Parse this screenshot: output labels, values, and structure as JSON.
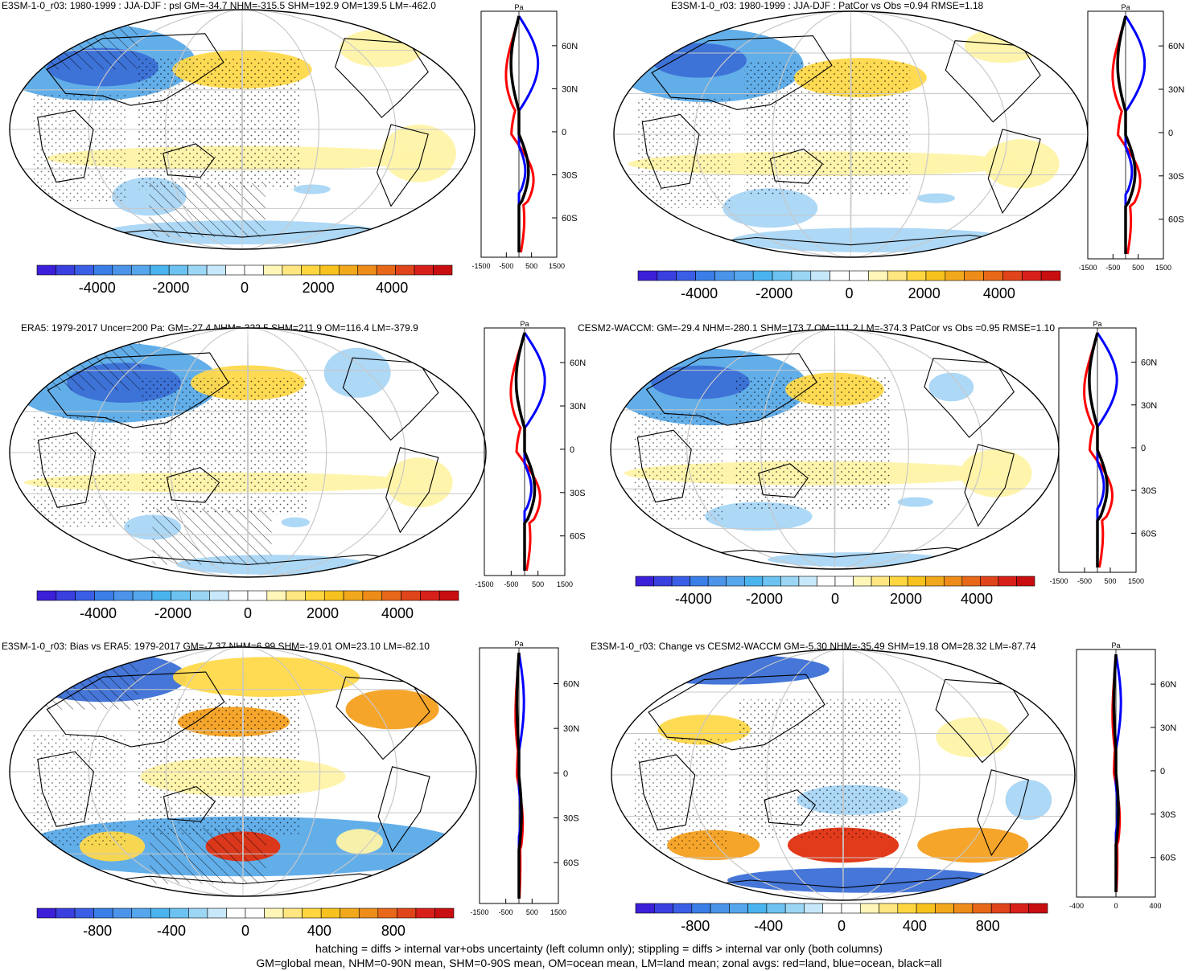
{
  "colors": {
    "ocean_bg": "#ffffff",
    "blue_strong": "#3b6fd6",
    "blue_mid": "#5aaae8",
    "blue_light": "#a9d6f5",
    "yellow_light": "#fff3a6",
    "yellow_mid": "#ffd84a",
    "orange": "#f5a020",
    "red": "#e03010",
    "zonal_land": "#ff0000",
    "zonal_ocean": "#0000ff",
    "zonal_all": "#000000",
    "coast": "#000000",
    "grid": "#c8c8c8"
  },
  "colorbar_palette": [
    "#3b1fd9",
    "#3a3fe0",
    "#3a5fe6",
    "#3a7ee8",
    "#4b94ea",
    "#55a6ec",
    "#4ab4ee",
    "#6cc2f0",
    "#9bd6f5",
    "#c6e8fa",
    "#ffffff",
    "#ffffff",
    "#fff6b8",
    "#ffe680",
    "#ffd640",
    "#f7c21e",
    "#f2a81c",
    "#ee8c1a",
    "#e8681a",
    "#e0441a",
    "#d8201a",
    "#c80e10"
  ],
  "panels": [
    {
      "id": "e3sm-model",
      "title": "E3SM-1-0_r03: 1980-1999 : JJA-DJF : psl GM=-34.7 NHM=-315.5 SHM=192.9 OM=139.5 LM=-462.0",
      "colorbar_ticks": [
        "-4000",
        "-2000",
        "0",
        "2000",
        "4000"
      ],
      "profile_unit": "Pa",
      "profile_x_ticks": [
        "-1500",
        "-500",
        "500",
        "1500"
      ],
      "profile_y_ticks": [
        "60N",
        "30N",
        "0",
        "30S",
        "60S"
      ],
      "hatched": true
    },
    {
      "id": "e3sm-patcor",
      "title": "E3SM-1-0_r03: 1980-1999 : JJA-DJF : PatCor vs Obs =0.94 RMSE=1.18",
      "colorbar_ticks": [
        "-4000",
        "-2000",
        "0",
        "2000",
        "4000"
      ],
      "profile_unit": "Pa",
      "profile_x_ticks": [
        "-1500",
        "-500",
        "500",
        "1500"
      ],
      "profile_y_ticks": [
        "60N",
        "30N",
        "0",
        "30S",
        "60S"
      ],
      "hatched": false
    },
    {
      "id": "era5",
      "title": "ERA5: 1979-2017 Uncer=200 Pa: GM=-27.4 NHM=-322.5 SHM=211.9 OM=116.4 LM=-379.9",
      "colorbar_ticks": [
        "-4000",
        "-2000",
        "0",
        "2000",
        "4000"
      ],
      "profile_unit": "Pa",
      "profile_x_ticks": [
        "-1500",
        "-500",
        "500",
        "1500"
      ],
      "profile_y_ticks": [
        "60N",
        "30N",
        "0",
        "30S",
        "60S"
      ],
      "hatched": true
    },
    {
      "id": "cesm2",
      "title": "CESM2-WACCM: GM=-29.4 NHM=-280.1 SHM=173.7 OM=111.2 LM=-374.3 PatCor vs Obs =0.95 RMSE=1.10",
      "colorbar_ticks": [
        "-4000",
        "-2000",
        "0",
        "2000",
        "4000"
      ],
      "profile_unit": "Pa",
      "profile_x_ticks": [
        "-1500",
        "-500",
        "500",
        "1500"
      ],
      "profile_y_ticks": [
        "60N",
        "30N",
        "0",
        "30S",
        "60S"
      ],
      "hatched": false
    },
    {
      "id": "bias",
      "title": "E3SM-1-0_r03: Bias vs ERA5: 1979-2017 GM=-7.37 NHM=6.99 SHM=-19.01 OM=23.10 LM=-82.10",
      "colorbar_ticks": [
        "-800",
        "-400",
        "0",
        "400",
        "800"
      ],
      "profile_unit": "Pa",
      "profile_x_ticks": [
        "-1500",
        "-500",
        "500",
        "1500"
      ],
      "profile_y_ticks": [
        "60N",
        "30N",
        "0",
        "30S",
        "60S"
      ],
      "hatched": true
    },
    {
      "id": "change",
      "title": "E3SM-1-0_r03: Change vs CESM2-WACCM GM=-5.30 NHM=-35.49 SHM=19.18 OM=28.32 LM=-87.74",
      "colorbar_ticks": [
        "-800",
        "-400",
        "0",
        "400",
        "800"
      ],
      "profile_unit": "Pa",
      "profile_x_ticks": [
        "-400",
        "0",
        "400"
      ],
      "profile_y_ticks": [
        "60N",
        "30N",
        "0",
        "30S",
        "60S"
      ],
      "hatched": false
    }
  ],
  "footer": {
    "line1": "hatching = diffs > internal var+obs uncertainty (left column only); stippling = diffs > internal var only (both columns)",
    "line2": "GM=global mean, NHM=0-90N mean, SHM=0-90S mean, OM=ocean mean, LM=land mean; zonal avgs: red=land, blue=ocean, black=all"
  }
}
